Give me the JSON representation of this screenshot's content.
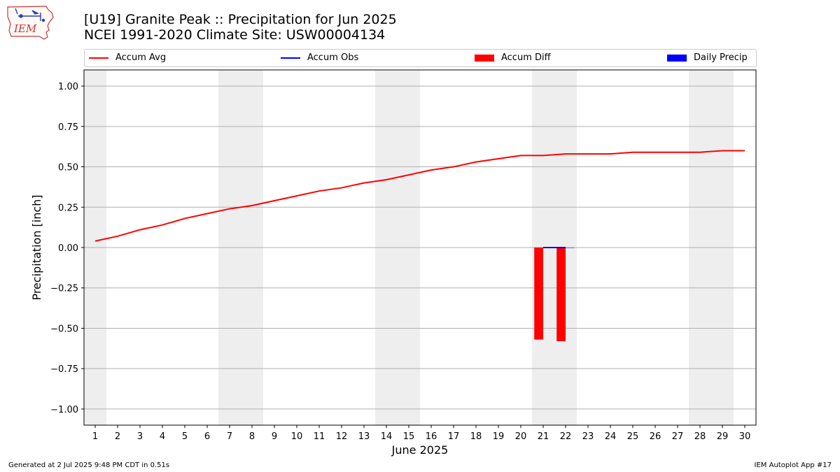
{
  "header": {
    "title_line1": "[U19] Granite Peak :: Precipitation for Jun 2025",
    "title_line2": "NCEI 1991-2020 Climate Site: USW00004134",
    "logo_text": "IEM"
  },
  "footer": {
    "left": "Generated at 2 Jul 2025 9:48 PM CDT in 0.51s",
    "right": "IEM Autoplot App #17"
  },
  "colors": {
    "accum_avg": "#ff0000",
    "accum_obs": "#0000ff",
    "accum_diff": "#ff0000",
    "daily_precip": "#0000ff",
    "weekend_shade": "#eeeeee",
    "grid": "#b0b0b0"
  },
  "chart_data": {
    "type": "line",
    "xlabel": "June 2025",
    "ylabel": "Precipitation [inch]",
    "x": [
      1,
      2,
      3,
      4,
      5,
      6,
      7,
      8,
      9,
      10,
      11,
      12,
      13,
      14,
      15,
      16,
      17,
      18,
      19,
      20,
      21,
      22,
      23,
      24,
      25,
      26,
      27,
      28,
      29,
      30
    ],
    "xticks": [
      "1",
      "2",
      "3",
      "4",
      "5",
      "6",
      "7",
      "8",
      "9",
      "10",
      "11",
      "12",
      "13",
      "14",
      "15",
      "16",
      "17",
      "18",
      "19",
      "20",
      "21",
      "22",
      "23",
      "24",
      "25",
      "26",
      "27",
      "28",
      "29",
      "30"
    ],
    "xlim": [
      0.5,
      30.5
    ],
    "ylim": [
      -1.1,
      1.1
    ],
    "yticks": [
      {
        "v": 1.0,
        "label": "1.00"
      },
      {
        "v": 0.75,
        "label": "0.75"
      },
      {
        "v": 0.5,
        "label": "0.50"
      },
      {
        "v": 0.25,
        "label": "0.25"
      },
      {
        "v": 0.0,
        "label": "0.00"
      },
      {
        "v": -0.25,
        "label": "−0.25"
      },
      {
        "v": -0.5,
        "label": "−0.50"
      },
      {
        "v": -0.75,
        "label": "−0.75"
      },
      {
        "v": -1.0,
        "label": "−1.00"
      }
    ],
    "grid": "horizontal",
    "legend_position": "top",
    "weekend_shading": [
      1,
      7,
      8,
      14,
      15,
      21,
      22,
      28,
      29
    ],
    "legend": [
      "Accum Avg",
      "Accum Obs",
      "Accum Diff",
      "Daily Precip"
    ],
    "series": [
      {
        "name": "Accum Avg",
        "kind": "line",
        "x": [
          1,
          2,
          3,
          4,
          5,
          6,
          7,
          8,
          9,
          10,
          11,
          12,
          13,
          14,
          15,
          16,
          17,
          18,
          19,
          20,
          21,
          22,
          23,
          24,
          25,
          26,
          27,
          28,
          29,
          30
        ],
        "values": [
          0.04,
          0.07,
          0.11,
          0.14,
          0.18,
          0.21,
          0.24,
          0.26,
          0.29,
          0.32,
          0.35,
          0.37,
          0.4,
          0.42,
          0.45,
          0.48,
          0.5,
          0.53,
          0.55,
          0.57,
          0.57,
          0.58,
          0.58,
          0.58,
          0.59,
          0.59,
          0.59,
          0.59,
          0.6,
          0.6
        ]
      },
      {
        "name": "Accum Obs",
        "kind": "line",
        "x": [
          21,
          22
        ],
        "values": [
          0.0,
          0.0
        ]
      },
      {
        "name": "Accum Diff",
        "kind": "bar",
        "x": [
          21,
          22
        ],
        "values": [
          -0.57,
          -0.58
        ]
      },
      {
        "name": "Daily Precip",
        "kind": "bar",
        "x": [
          21,
          22
        ],
        "values": [
          0.0,
          0.0
        ]
      }
    ]
  }
}
